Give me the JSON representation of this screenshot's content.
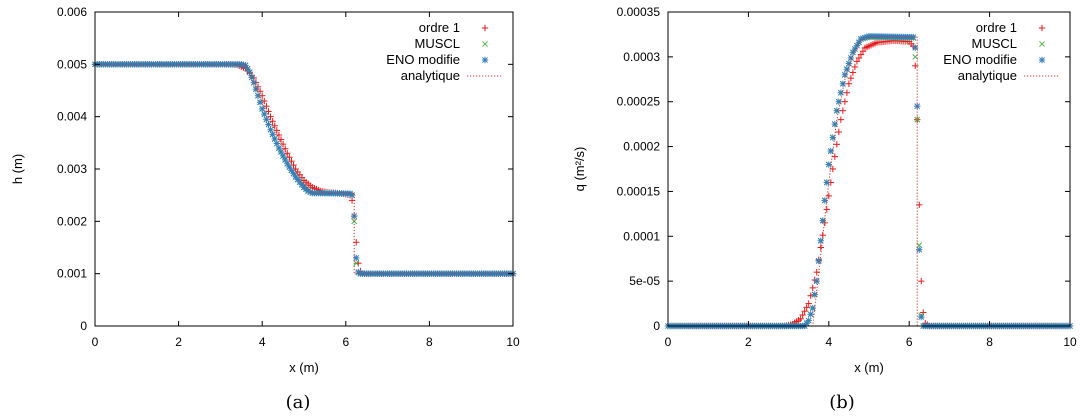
{
  "chart_data": [
    {
      "type": "scatter",
      "caption": "(a)",
      "xlabel": "x (m)",
      "ylabel": "h (m)",
      "xlim": [
        0,
        10
      ],
      "ylim": [
        0,
        0.006
      ],
      "xticks": [
        "0",
        "2",
        "4",
        "6",
        "8",
        "10"
      ],
      "yticks": [
        "0",
        "0.001",
        "0.002",
        "0.003",
        "0.004",
        "0.005",
        "0.006"
      ],
      "grid": false,
      "legend_position": "top-right",
      "series": [
        {
          "name": "ordre 1",
          "marker": "plus",
          "color": "#e41a1c",
          "points": [
            [
              0,
              0.005
            ],
            [
              3.2,
              0.005
            ],
            [
              3.4,
              0.00499
            ],
            [
              3.6,
              0.00492
            ],
            [
              3.8,
              0.00474
            ],
            [
              4.0,
              0.0044
            ],
            [
              4.2,
              0.004
            ],
            [
              4.4,
              0.00365
            ],
            [
              4.6,
              0.0033
            ],
            [
              4.8,
              0.003
            ],
            [
              5.0,
              0.00278
            ],
            [
              5.2,
              0.00265
            ],
            [
              5.4,
              0.00258
            ],
            [
              5.6,
              0.00255
            ],
            [
              5.8,
              0.00254
            ],
            [
              6.0,
              0.00252
            ],
            [
              6.1,
              0.0025
            ],
            [
              6.15,
              0.0024
            ],
            [
              6.2,
              0.0021
            ],
            [
              6.25,
              0.0016
            ],
            [
              6.3,
              0.0012
            ],
            [
              6.35,
              0.00105
            ],
            [
              6.4,
              0.001
            ],
            [
              10,
              0.001
            ]
          ]
        },
        {
          "name": "MUSCL",
          "marker": "x",
          "color": "#4daf4a",
          "points": [
            [
              0,
              0.005
            ],
            [
              3.5,
              0.005
            ],
            [
              3.6,
              0.00498
            ],
            [
              3.7,
              0.00485
            ],
            [
              3.8,
              0.00465
            ],
            [
              3.9,
              0.0044
            ],
            [
              4.0,
              0.00415
            ],
            [
              4.2,
              0.00375
            ],
            [
              4.4,
              0.0034
            ],
            [
              4.6,
              0.0031
            ],
            [
              4.8,
              0.00285
            ],
            [
              5.0,
              0.00265
            ],
            [
              5.1,
              0.00258
            ],
            [
              5.2,
              0.00254
            ],
            [
              6.1,
              0.00253
            ],
            [
              6.15,
              0.0025
            ],
            [
              6.2,
              0.002
            ],
            [
              6.25,
              0.0012
            ],
            [
              6.3,
              0.00102
            ],
            [
              6.35,
              0.001
            ],
            [
              10,
              0.001
            ]
          ]
        },
        {
          "name": "ENO modifie",
          "marker": "star",
          "color": "#377eb8",
          "points": [
            [
              0,
              0.005
            ],
            [
              3.5,
              0.005
            ],
            [
              3.6,
              0.00498
            ],
            [
              3.7,
              0.00485
            ],
            [
              3.8,
              0.00465
            ],
            [
              3.9,
              0.0044
            ],
            [
              4.0,
              0.00415
            ],
            [
              4.2,
              0.00375
            ],
            [
              4.4,
              0.0034
            ],
            [
              4.6,
              0.0031
            ],
            [
              4.8,
              0.00285
            ],
            [
              5.0,
              0.00265
            ],
            [
              5.1,
              0.00258
            ],
            [
              5.2,
              0.00254
            ],
            [
              6.1,
              0.00253
            ],
            [
              6.15,
              0.0025
            ],
            [
              6.2,
              0.0021
            ],
            [
              6.25,
              0.0013
            ],
            [
              6.3,
              0.00103
            ],
            [
              6.35,
              0.001
            ],
            [
              10,
              0.001
            ]
          ]
        },
        {
          "name": "analytique",
          "marker": "dotted-line",
          "color": "#c0392b",
          "points": [
            [
              0,
              0.005
            ],
            [
              3.6,
              0.005
            ],
            [
              3.8,
              0.00465
            ],
            [
              4.0,
              0.00428
            ],
            [
              4.2,
              0.00392
            ],
            [
              4.4,
              0.00358
            ],
            [
              4.6,
              0.00326
            ],
            [
              4.8,
              0.00296
            ],
            [
              5.0,
              0.0027
            ],
            [
              5.2,
              0.00254
            ],
            [
              6.2,
              0.00254
            ],
            [
              6.2,
              0.001
            ],
            [
              10,
              0.001
            ]
          ]
        }
      ]
    },
    {
      "type": "scatter",
      "caption": "(b)",
      "xlabel": "x (m)",
      "ylabel": "q (m²/s)",
      "xlim": [
        0,
        10
      ],
      "ylim": [
        0,
        0.00035
      ],
      "xticks": [
        "0",
        "2",
        "4",
        "6",
        "8",
        "10"
      ],
      "yticks": [
        "0",
        "5e-05",
        "0.0001",
        "0.00015",
        "0.0002",
        "0.00025",
        "0.0003",
        "0.00035"
      ],
      "grid": false,
      "legend_position": "top-right",
      "series": [
        {
          "name": "ordre 1",
          "marker": "plus",
          "color": "#e41a1c",
          "points": [
            [
              0,
              0
            ],
            [
              2.9,
              0
            ],
            [
              3.1,
              2e-06
            ],
            [
              3.3,
              8e-06
            ],
            [
              3.5,
              2.5e-05
            ],
            [
              3.7,
              6e-05
            ],
            [
              3.9,
              0.000115
            ],
            [
              4.1,
              0.000175
            ],
            [
              4.3,
              0.00023
            ],
            [
              4.5,
              0.00027
            ],
            [
              4.7,
              0.000295
            ],
            [
              4.9,
              0.00031
            ],
            [
              5.2,
              0.000316
            ],
            [
              5.6,
              0.000318
            ],
            [
              6.0,
              0.000317
            ],
            [
              6.1,
              0.000312
            ],
            [
              6.15,
              0.00029
            ],
            [
              6.2,
              0.00023
            ],
            [
              6.25,
              0.000135
            ],
            [
              6.3,
              5e-05
            ],
            [
              6.35,
              1.5e-05
            ],
            [
              6.4,
              3e-06
            ],
            [
              6.5,
              0
            ],
            [
              10,
              0
            ]
          ]
        },
        {
          "name": "MUSCL",
          "marker": "x",
          "color": "#4daf4a",
          "points": [
            [
              0,
              0
            ],
            [
              3.4,
              0
            ],
            [
              3.5,
              6e-06
            ],
            [
              3.6,
              2e-05
            ],
            [
              3.7,
              5e-05
            ],
            [
              3.8,
              9.5e-05
            ],
            [
              3.9,
              0.00014
            ],
            [
              4.0,
              0.00018
            ],
            [
              4.2,
              0.00024
            ],
            [
              4.4,
              0.00028
            ],
            [
              4.6,
              0.000305
            ],
            [
              4.8,
              0.00032
            ],
            [
              5.0,
              0.000322
            ],
            [
              6.1,
              0.000321
            ],
            [
              6.15,
              0.0003
            ],
            [
              6.2,
              0.00023
            ],
            [
              6.25,
              9e-05
            ],
            [
              6.3,
              1.2e-05
            ],
            [
              6.35,
              0
            ],
            [
              10,
              0
            ]
          ]
        },
        {
          "name": "ENO modifie",
          "marker": "star",
          "color": "#377eb8",
          "points": [
            [
              0,
              0
            ],
            [
              3.4,
              0
            ],
            [
              3.5,
              6e-06
            ],
            [
              3.6,
              2e-05
            ],
            [
              3.7,
              5e-05
            ],
            [
              3.8,
              9.5e-05
            ],
            [
              3.9,
              0.00014
            ],
            [
              4.0,
              0.00018
            ],
            [
              4.2,
              0.00024
            ],
            [
              4.4,
              0.00028
            ],
            [
              4.6,
              0.000305
            ],
            [
              4.8,
              0.00032
            ],
            [
              5.0,
              0.000323
            ],
            [
              6.1,
              0.000322
            ],
            [
              6.15,
              0.00031
            ],
            [
              6.2,
              0.000245
            ],
            [
              6.25,
              8.5e-05
            ],
            [
              6.3,
              1e-05
            ],
            [
              6.35,
              0
            ],
            [
              10,
              0
            ]
          ]
        },
        {
          "name": "analytique",
          "marker": "dotted-line",
          "color": "#c0392b",
          "points": [
            [
              0,
              0
            ],
            [
              3.6,
              0
            ],
            [
              3.8,
              8e-05
            ],
            [
              4.0,
              0.00016
            ],
            [
              4.2,
              0.00023
            ],
            [
              4.4,
              0.000275
            ],
            [
              4.6,
              0.000302
            ],
            [
              4.8,
              0.000318
            ],
            [
              5.0,
              0.000322
            ],
            [
              6.2,
              0.000322
            ],
            [
              6.2,
              0
            ],
            [
              10,
              0
            ]
          ]
        }
      ]
    }
  ]
}
